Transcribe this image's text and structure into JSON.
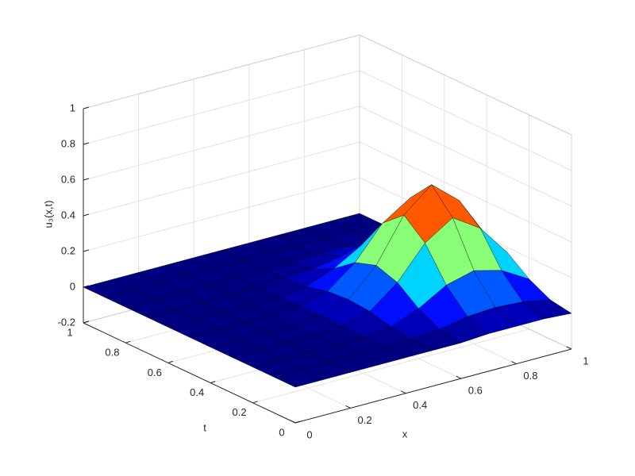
{
  "chart_data": {
    "type": "surface",
    "colormap": "jet",
    "grid": true,
    "xlabel": "x",
    "ylabel": "t",
    "zlabel": "u₃(x,t)",
    "x": [
      0,
      0.1,
      0.2,
      0.3,
      0.4,
      0.5,
      0.6,
      0.7,
      0.8,
      0.9,
      1
    ],
    "y": [
      0,
      0.1,
      0.2,
      0.3,
      0.4,
      0.5,
      0.6,
      0.7,
      0.8,
      0.9,
      1
    ],
    "z": [
      [
        0,
        0,
        0,
        0,
        0,
        0,
        0,
        0.01,
        0.01,
        0.01,
        0
      ],
      [
        0,
        0,
        0,
        0,
        0,
        0.01,
        0.02,
        0.05,
        0.06,
        0.05,
        0.02
      ],
      [
        0,
        0,
        0,
        0,
        0,
        0.02,
        0.08,
        0.17,
        0.21,
        0.17,
        0.08
      ],
      [
        0,
        0,
        0,
        0,
        0.01,
        0.05,
        0.17,
        0.35,
        0.45,
        0.35,
        0.17
      ],
      [
        0,
        0,
        0,
        0,
        0.01,
        0.06,
        0.21,
        0.45,
        0.58,
        0.45,
        0.21
      ],
      [
        0,
        0,
        0,
        0,
        0.01,
        0.05,
        0.17,
        0.35,
        0.45,
        0.35,
        0.17
      ],
      [
        0,
        0,
        0,
        0,
        0,
        0.02,
        0.08,
        0.17,
        0.21,
        0.17,
        0.08
      ],
      [
        0,
        0,
        0,
        0,
        0,
        0.01,
        0.02,
        0.05,
        0.06,
        0.05,
        0.02
      ],
      [
        0,
        0,
        0,
        0,
        0,
        0,
        0,
        0.01,
        0.01,
        0.01,
        0
      ],
      [
        0,
        0,
        0,
        0,
        0,
        0,
        0,
        0,
        0,
        0,
        0
      ],
      [
        0,
        0,
        0,
        0,
        0,
        0,
        0,
        0,
        0,
        0,
        0
      ]
    ],
    "xlim": [
      0,
      1
    ],
    "ylim": [
      0,
      1
    ],
    "zlim": [
      -0.2,
      1
    ],
    "xticks": [
      0,
      0.2,
      0.4,
      0.6,
      0.8,
      1
    ],
    "yticks": [
      0,
      0.2,
      0.4,
      0.6,
      0.8,
      1
    ],
    "zticks": [
      -0.2,
      0,
      0.2,
      0.4,
      0.6,
      0.8,
      1
    ]
  }
}
